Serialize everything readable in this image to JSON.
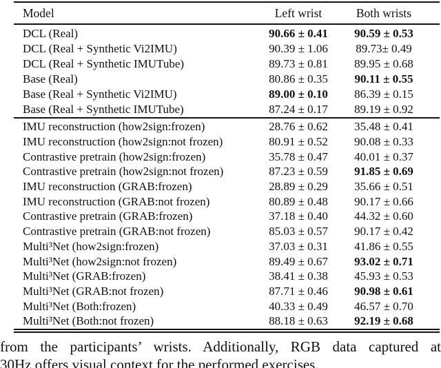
{
  "table": {
    "header": {
      "model": "Model",
      "left": "Left wrist",
      "both": "Both wrists"
    },
    "groups": [
      {
        "rows": [
          {
            "model": "DCL (Real)",
            "left": {
              "v": "90.66 ± 0.41",
              "bold": true
            },
            "both": {
              "v": "90.59 ± 0.53",
              "bold": true
            }
          },
          {
            "model": "DCL (Real + Synthetic Vi2IMU)",
            "left": {
              "v": "90.39 ± 1.06",
              "bold": false
            },
            "both": {
              "v": "89.73± 0.49",
              "bold": false
            }
          },
          {
            "model": "DCL (Real + Synthetic IMUTube)",
            "left": {
              "v": "89.73 ± 0.81",
              "bold": false
            },
            "both": {
              "v": "89.95 ± 0.68",
              "bold": false
            }
          },
          {
            "model": "Base (Real)",
            "left": {
              "v": "80.86 ± 0.35",
              "bold": false
            },
            "both": {
              "v": "90.11 ± 0.55",
              "bold": true
            }
          },
          {
            "model": "Base (Real + Synthetic Vi2IMU)",
            "left": {
              "v": "89.00 ± 0.10",
              "bold": true
            },
            "both": {
              "v": "86.39 ± 0.15",
              "bold": false
            }
          },
          {
            "model": "Base (Real + Synthetic IMUTube)",
            "left": {
              "v": "87.24 ± 0.17",
              "bold": false
            },
            "both": {
              "v": "89.19 ± 0.92",
              "bold": false
            }
          }
        ]
      },
      {
        "rows": [
          {
            "model": "IMU reconstruction (how2sign:frozen)",
            "left": {
              "v": "28.76 ± 0.62",
              "bold": false
            },
            "both": {
              "v": "35.48 ± 0.41",
              "bold": false
            }
          },
          {
            "model": "IMU reconstruction (how2sign:not frozen)",
            "left": {
              "v": "80.91 ± 0.52",
              "bold": false
            },
            "both": {
              "v": "90.08 ± 0.33",
              "bold": false
            }
          },
          {
            "model": "Contrastive pretrain (how2sign:frozen)",
            "left": {
              "v": "35.78 ± 0.47",
              "bold": false
            },
            "both": {
              "v": "40.01 ± 0.37",
              "bold": false
            }
          },
          {
            "model": "Contrastive pretrain (how2sign:not frozen)",
            "left": {
              "v": "87.23 ± 0.59",
              "bold": false
            },
            "both": {
              "v": "91.85 ± 0.69",
              "bold": true
            }
          },
          {
            "model": "IMU reconstruction (GRAB:frozen)",
            "left": {
              "v": "28.89 ± 0.29",
              "bold": false
            },
            "both": {
              "v": "35.66 ± 0.51",
              "bold": false
            }
          },
          {
            "model": "IMU reconstruction (GRAB:not frozen)",
            "left": {
              "v": "80.89 ± 0.48",
              "bold": false
            },
            "both": {
              "v": "90.17 ± 0.66",
              "bold": false
            }
          },
          {
            "model": "Contrastive pretrain (GRAB:frozen)",
            "left": {
              "v": "37.18 ± 0.40",
              "bold": false
            },
            "both": {
              "v": "44.32 ± 0.60",
              "bold": false
            }
          },
          {
            "model": "Contrastive pretrain (GRAB:not frozen)",
            "left": {
              "v": "85.03 ± 0.57",
              "bold": false
            },
            "both": {
              "v": "90.17 ± 0.42",
              "bold": false
            }
          },
          {
            "model": "Multi³Net (how2sign:frozen)",
            "left": {
              "v": "37.03 ± 0.31",
              "bold": false
            },
            "both": {
              "v": "41.86 ± 0.55",
              "bold": false
            }
          },
          {
            "model": "Multi³Net (how2sign:not frozen)",
            "left": {
              "v": "89.49 ± 0.67",
              "bold": false
            },
            "both": {
              "v": "93.02 ± 0.71",
              "bold": true
            }
          },
          {
            "model": "Multi³Net (GRAB:frozen)",
            "left": {
              "v": "38.41 ± 0.38",
              "bold": false
            },
            "both": {
              "v": "45.93 ± 0.53",
              "bold": false
            }
          },
          {
            "model": "Multi³Net (GRAB:not frozen)",
            "left": {
              "v": "87.71 ± 0.46",
              "bold": false
            },
            "both": {
              "v": "90.98 ± 0.61",
              "bold": true
            }
          },
          {
            "model": "Multi³Net (Both:frozen)",
            "left": {
              "v": "40.33 ± 0.49",
              "bold": false
            },
            "both": {
              "v": "46.57 ± 0.70",
              "bold": false
            }
          },
          {
            "model": "Multi³Net (Both:not frozen)",
            "left": {
              "v": "88.18 ± 0.63",
              "bold": false
            },
            "both": {
              "v": "92.19 ± 0.68",
              "bold": true
            }
          }
        ]
      }
    ]
  },
  "caption": {
    "line1": "from the participants’ wrists. Additionally, RGB data captured at",
    "line2": "30Hz offers visual context for the performed exercises."
  },
  "colors": {
    "text": "#111111",
    "background": "#ffffff",
    "rule": "#111111"
  }
}
